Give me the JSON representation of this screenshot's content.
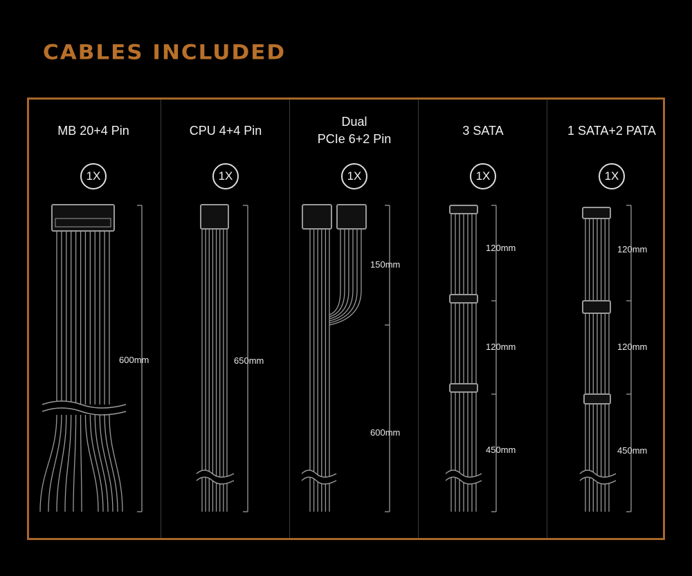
{
  "title": "CABLES INCLUDED",
  "colors": {
    "accent": "#b8702a",
    "background": "#000000",
    "wire": "#9a9a9a"
  },
  "cables": [
    {
      "name": "MB 20+4 Pin",
      "quantity": "1X",
      "lengths": [
        "600mm"
      ]
    },
    {
      "name_line1": "Dual",
      "name_line2": "PCIe 6+2 Pin",
      "name": "CPU 4+4 Pin",
      "quantity": "1X",
      "lengths": [
        "650mm"
      ]
    },
    {
      "name_line1": "Dual",
      "name_line2": "PCIe 6+2 Pin",
      "quantity": "1X",
      "lengths": [
        "150mm",
        "600mm"
      ]
    },
    {
      "name": "3 SATA",
      "quantity": "1X",
      "lengths": [
        "120mm",
        "120mm",
        "450mm"
      ]
    },
    {
      "name": "1 SATA+2 PATA",
      "quantity": "1X",
      "lengths": [
        "120mm",
        "120mm",
        "450mm"
      ]
    }
  ]
}
